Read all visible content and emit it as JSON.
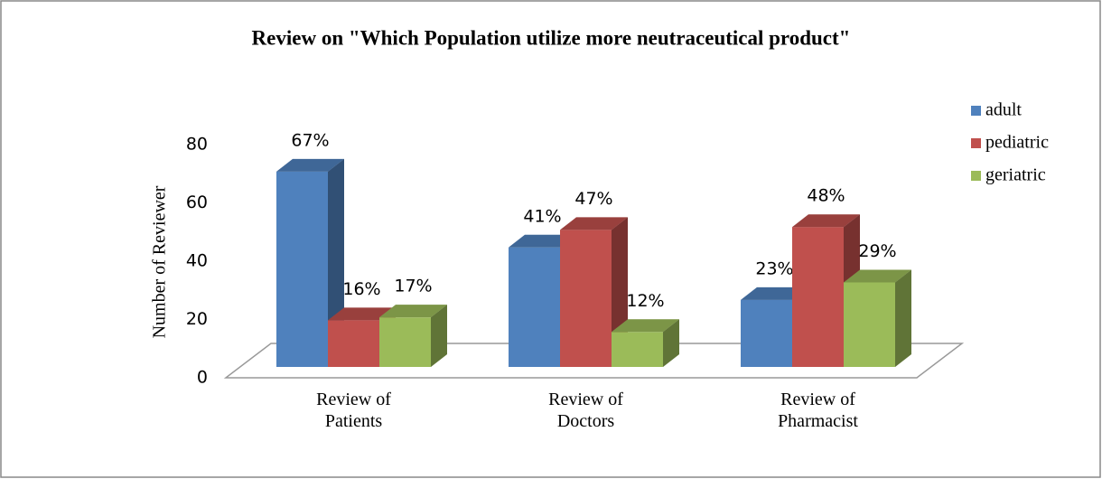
{
  "chart_data": {
    "type": "bar3d",
    "title": "Review on \"Which Population utilize more neutraceutical product\"",
    "y_label": "Number of Reviewer",
    "categories": [
      "Review of Patients",
      "Review of Doctors",
      "Review of Pharmacist"
    ],
    "series": [
      {
        "name": "adult",
        "color": "#4f81bd",
        "values": [
          67,
          41,
          23
        ],
        "value_labels": [
          "67%",
          "41%",
          "23%"
        ]
      },
      {
        "name": "pediatric",
        "color": "#c0504d",
        "values": [
          16,
          47,
          48
        ],
        "value_labels": [
          "16%",
          "47%",
          "48%"
        ]
      },
      {
        "name": "geriatric",
        "color": "#9bbb59",
        "values": [
          17,
          12,
          29
        ],
        "value_labels": [
          "17%",
          "12%",
          "29%"
        ]
      }
    ],
    "ylim": [
      0,
      80
    ],
    "yticks": [
      0,
      20,
      40,
      60,
      80
    ],
    "legend": "right"
  }
}
